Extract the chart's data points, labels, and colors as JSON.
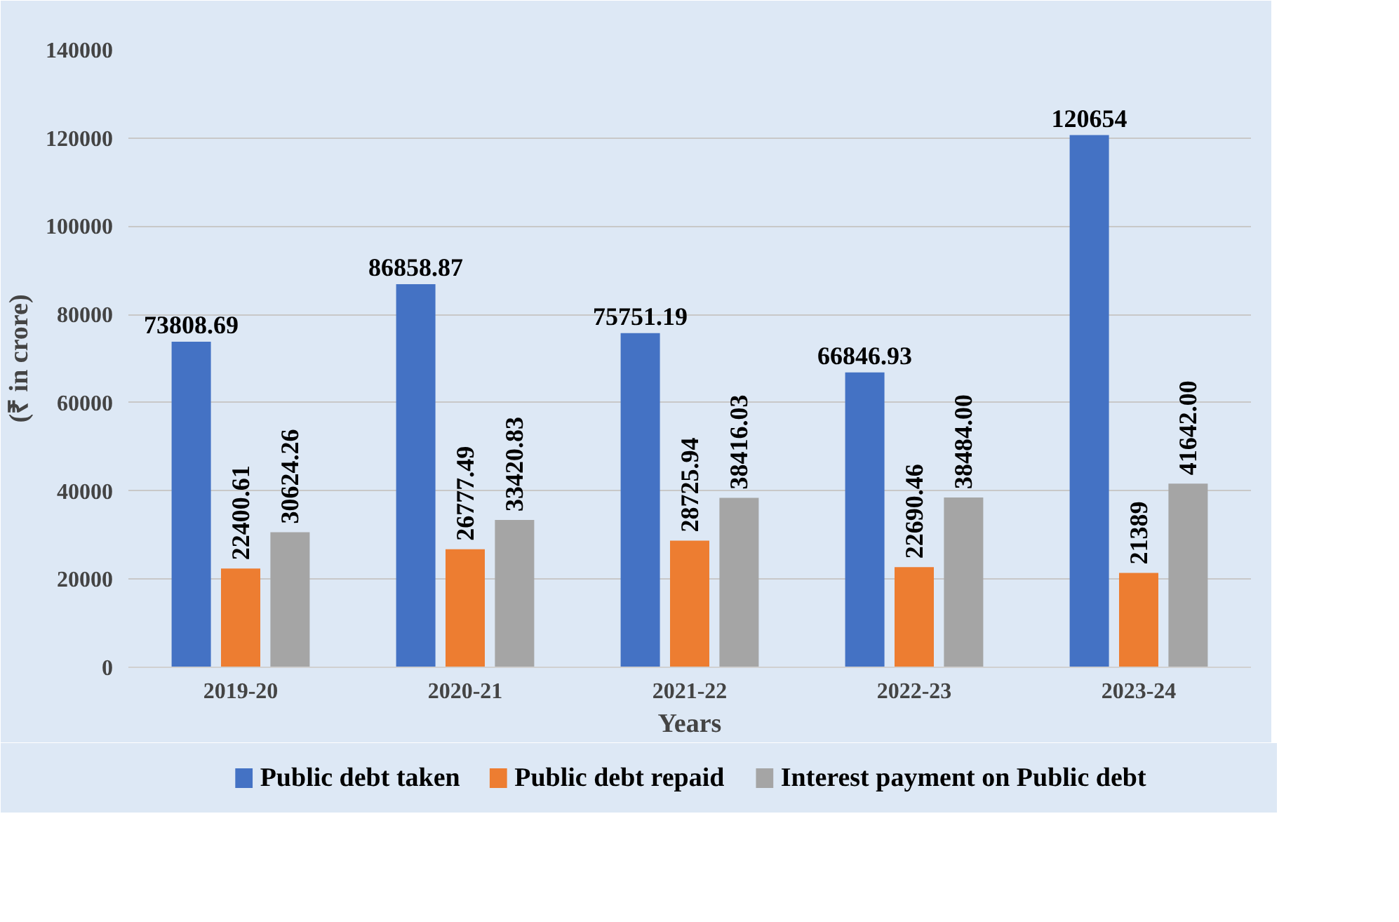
{
  "chart_data": {
    "type": "bar",
    "xlabel": "Years",
    "ylabel": "(₹ in crore)",
    "categories": [
      "2019-20",
      "2020-21",
      "2021-22",
      "2022-23",
      "2023-24"
    ],
    "series": [
      {
        "name": "Public debt taken",
        "color": "#4472c4",
        "values": [
          73808.69,
          86858.87,
          75751.19,
          66846.93,
          120654
        ],
        "value_labels": [
          "73808.69",
          "86858.87",
          "75751.19",
          "66846.93",
          "120654"
        ]
      },
      {
        "name": "Public debt repaid",
        "color": "#ed7d31",
        "values": [
          22400.61,
          26777.49,
          28725.94,
          22690.46,
          21389
        ],
        "value_labels": [
          "22400.61",
          "26777.49",
          "28725.94",
          "22690.46",
          "21389"
        ]
      },
      {
        "name": "Interest payment on Public debt",
        "color": "#a5a5a5",
        "values": [
          30624.26,
          33420.83,
          38416.03,
          38484.0,
          41642.0
        ],
        "value_labels": [
          "30624.26",
          "33420.83",
          "38416.03",
          "38484.00",
          "41642.00"
        ]
      }
    ],
    "ylim": [
      0,
      140000
    ],
    "yticks": [
      0,
      20000,
      40000,
      60000,
      80000,
      100000,
      120000,
      140000
    ],
    "grid": "y",
    "legend": "bottom"
  }
}
